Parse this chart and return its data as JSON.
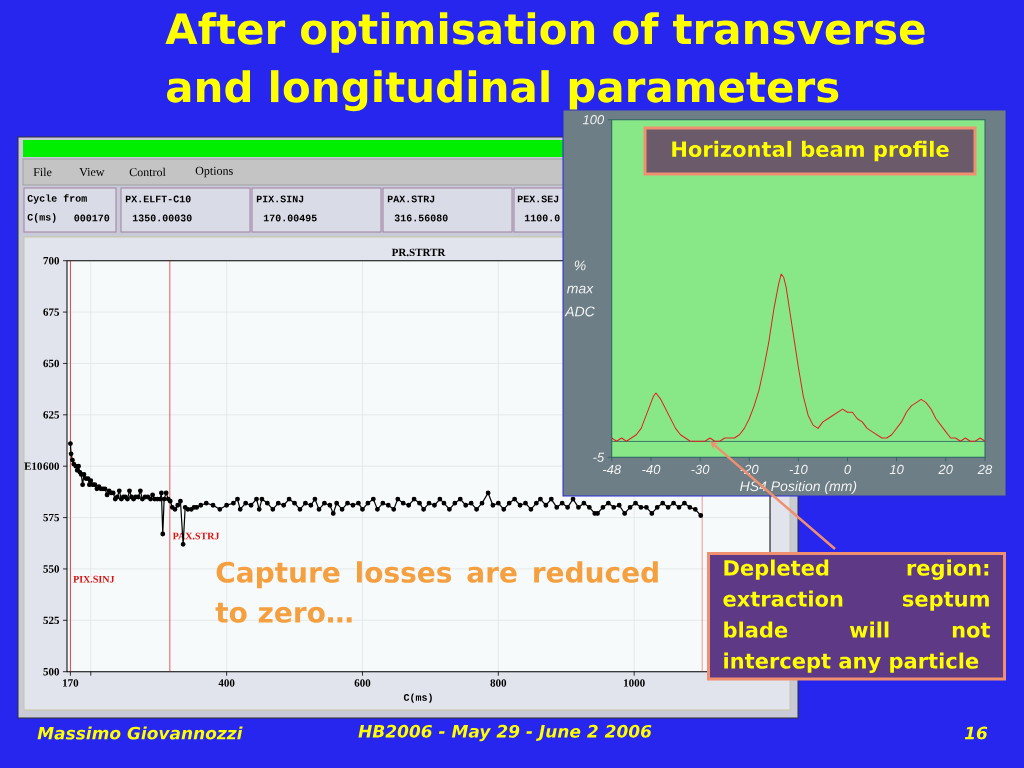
{
  "chart_data": [
    {
      "type": "line",
      "title": "PR.STRTR",
      "xlabel": "C(ms)",
      "ylabel": "E10",
      "x": [
        170,
        171,
        173,
        175,
        178,
        180,
        182,
        184,
        186,
        188,
        190,
        193,
        196,
        198,
        200,
        203,
        206,
        209,
        212,
        215,
        218,
        221,
        224,
        227,
        230,
        233,
        236,
        239,
        242,
        245,
        248,
        251,
        254,
        257,
        260,
        263,
        266,
        270,
        273,
        276,
        280,
        284,
        288,
        291,
        294,
        298,
        302,
        304,
        306,
        308,
        311,
        314,
        317,
        320,
        324,
        328,
        332,
        336,
        339,
        343,
        348,
        352,
        356,
        362,
        370,
        380,
        390,
        400,
        410,
        416,
        420,
        428,
        436,
        444,
        448,
        452,
        460,
        468,
        476,
        484,
        492,
        500,
        508,
        516,
        524,
        530,
        536,
        544,
        552,
        557,
        562,
        570,
        578,
        586,
        594,
        600,
        608,
        616,
        622,
        630,
        638,
        646,
        652,
        660,
        668,
        676,
        684,
        690,
        698,
        706,
        714,
        720,
        728,
        736,
        744,
        752,
        760,
        768,
        776,
        785,
        792,
        800,
        808,
        816,
        824,
        832,
        840,
        848,
        856,
        862,
        870,
        878,
        886,
        894,
        902,
        910,
        918,
        926,
        934,
        942,
        946,
        954,
        962,
        970,
        978,
        986,
        994,
        1002,
        1010,
        1018,
        1026,
        1034,
        1042,
        1050,
        1058,
        1066,
        1074,
        1082,
        1090,
        1098
      ],
      "values": [
        611,
        606,
        603,
        601,
        600,
        598,
        600,
        597,
        596,
        591,
        596,
        594,
        594,
        591,
        593,
        591,
        591,
        589,
        590,
        589,
        589,
        589,
        586,
        588,
        587,
        587,
        584,
        585,
        588,
        584,
        585,
        585,
        584,
        588,
        585,
        584,
        585,
        585,
        588,
        584,
        585,
        585,
        584,
        586,
        584,
        584,
        584,
        587,
        567,
        584,
        587,
        584,
        583,
        580,
        579,
        581,
        583,
        562,
        580,
        579,
        579,
        580,
        580,
        581,
        582,
        581,
        579,
        581,
        582,
        584,
        579,
        582,
        581,
        584,
        579,
        584,
        582,
        579,
        582,
        581,
        584,
        582,
        579,
        582,
        581,
        584,
        579,
        582,
        581,
        577,
        582,
        579,
        582,
        581,
        582,
        579,
        582,
        584,
        579,
        582,
        581,
        579,
        584,
        582,
        581,
        584,
        582,
        579,
        582,
        581,
        584,
        582,
        579,
        582,
        584,
        581,
        582,
        579,
        582,
        587,
        581,
        582,
        579,
        582,
        584,
        581,
        582,
        579,
        582,
        584,
        581,
        584,
        580,
        582,
        580,
        584,
        580,
        582,
        580,
        577,
        577,
        580,
        582,
        580,
        581,
        577,
        580,
        582,
        580,
        580,
        577,
        580,
        582,
        580,
        582,
        580,
        582,
        580,
        579,
        576
      ],
      "color": "#000000",
      "marker": "circle",
      "xlim": [
        165,
        1200
      ],
      "ylim": [
        500,
        700
      ],
      "xticks": [
        170,
        {
          "value": 200,
          "label": null
        },
        400,
        600,
        800,
        1000
      ],
      "yticks": [
        500,
        525,
        550,
        575,
        600,
        625,
        650,
        675,
        700
      ],
      "grid": true,
      "ref_lines": [
        {
          "axis": "x",
          "value": 170,
          "label": "PIX.SINJ",
          "color": "#dd1111"
        },
        {
          "axis": "x",
          "value": 316.56,
          "label": "PAX.STRJ",
          "color": "#dd1111"
        },
        {
          "axis": "x",
          "value": 1100,
          "color": "#dd1111"
        }
      ],
      "annotations": [
        "After optimisation of transverse and longitudinal parameters",
        "Capture losses are reduced to zero…",
        "File",
        "View",
        "Control",
        "Options",
        "Cycle from",
        "C(ms)",
        "000170",
        "PX.ELFT-C10",
        "1350.00030",
        "PIX.SINJ",
        "170.00495",
        "PAX.STRJ",
        "316.56080",
        "PEX.SEJ",
        "1100.0",
        "Massimo Giovannozzi",
        "HB2006 - May 29 - June 2 2006",
        "16"
      ]
    },
    {
      "type": "line",
      "title": "Horizontal beam profile",
      "xlabel": "HS4 Position (mm)",
      "ylabel": "% max ADC",
      "x": [
        -48,
        -47,
        -46,
        -45,
        -44,
        -43,
        -42,
        -41,
        -40,
        -39.5,
        -39,
        -38.5,
        -38,
        -37,
        -36,
        -35,
        -34,
        -33,
        -32,
        -31,
        -30,
        -29,
        -28,
        -27,
        -26,
        -25,
        -24,
        -23,
        -22,
        -21,
        -20,
        -19,
        -18,
        -17,
        -16,
        -15,
        -14,
        -13.5,
        -13,
        -12.5,
        -12,
        -11,
        -10,
        -9,
        -8,
        -7,
        -6,
        -5,
        -4,
        -3,
        -2,
        -1,
        0,
        1,
        2,
        3,
        4,
        5,
        6,
        7,
        8,
        9,
        10,
        11,
        12,
        13,
        14,
        15,
        16,
        17,
        18,
        19,
        20,
        21,
        22,
        23,
        24,
        25,
        26,
        27,
        28
      ],
      "values": [
        1,
        0,
        1,
        0,
        1,
        2,
        4,
        8,
        12,
        14,
        15,
        14,
        13,
        10,
        7,
        4,
        2,
        1,
        0,
        0,
        0,
        0,
        1,
        0,
        0,
        1,
        1,
        1,
        2,
        4,
        7,
        11,
        16,
        23,
        31,
        41,
        49,
        52,
        51,
        48,
        43,
        33,
        23,
        14,
        8,
        5,
        4,
        6,
        7,
        8,
        9,
        10,
        9,
        9,
        7,
        6,
        4,
        3,
        2,
        1,
        1,
        2,
        4,
        6,
        9,
        11,
        12,
        13,
        12,
        10,
        7,
        5,
        3,
        1,
        1,
        0,
        1,
        0,
        0,
        1,
        0
      ],
      "color": "#e02020",
      "xlim": [
        -48,
        28
      ],
      "ylim": [
        -5,
        100
      ],
      "xticks": [
        -48,
        -40,
        -30,
        -20,
        -10,
        0,
        10,
        20,
        28
      ],
      "yticks": [
        -5,
        100
      ],
      "ref_lines": [
        {
          "axis": "y",
          "value": 0,
          "color": "#2a6060"
        }
      ],
      "annotations": [
        {
          "text": "Depleted region: extraction septum blade will not intercept any particle",
          "x": -28,
          "y": 0
        }
      ]
    }
  ]
}
